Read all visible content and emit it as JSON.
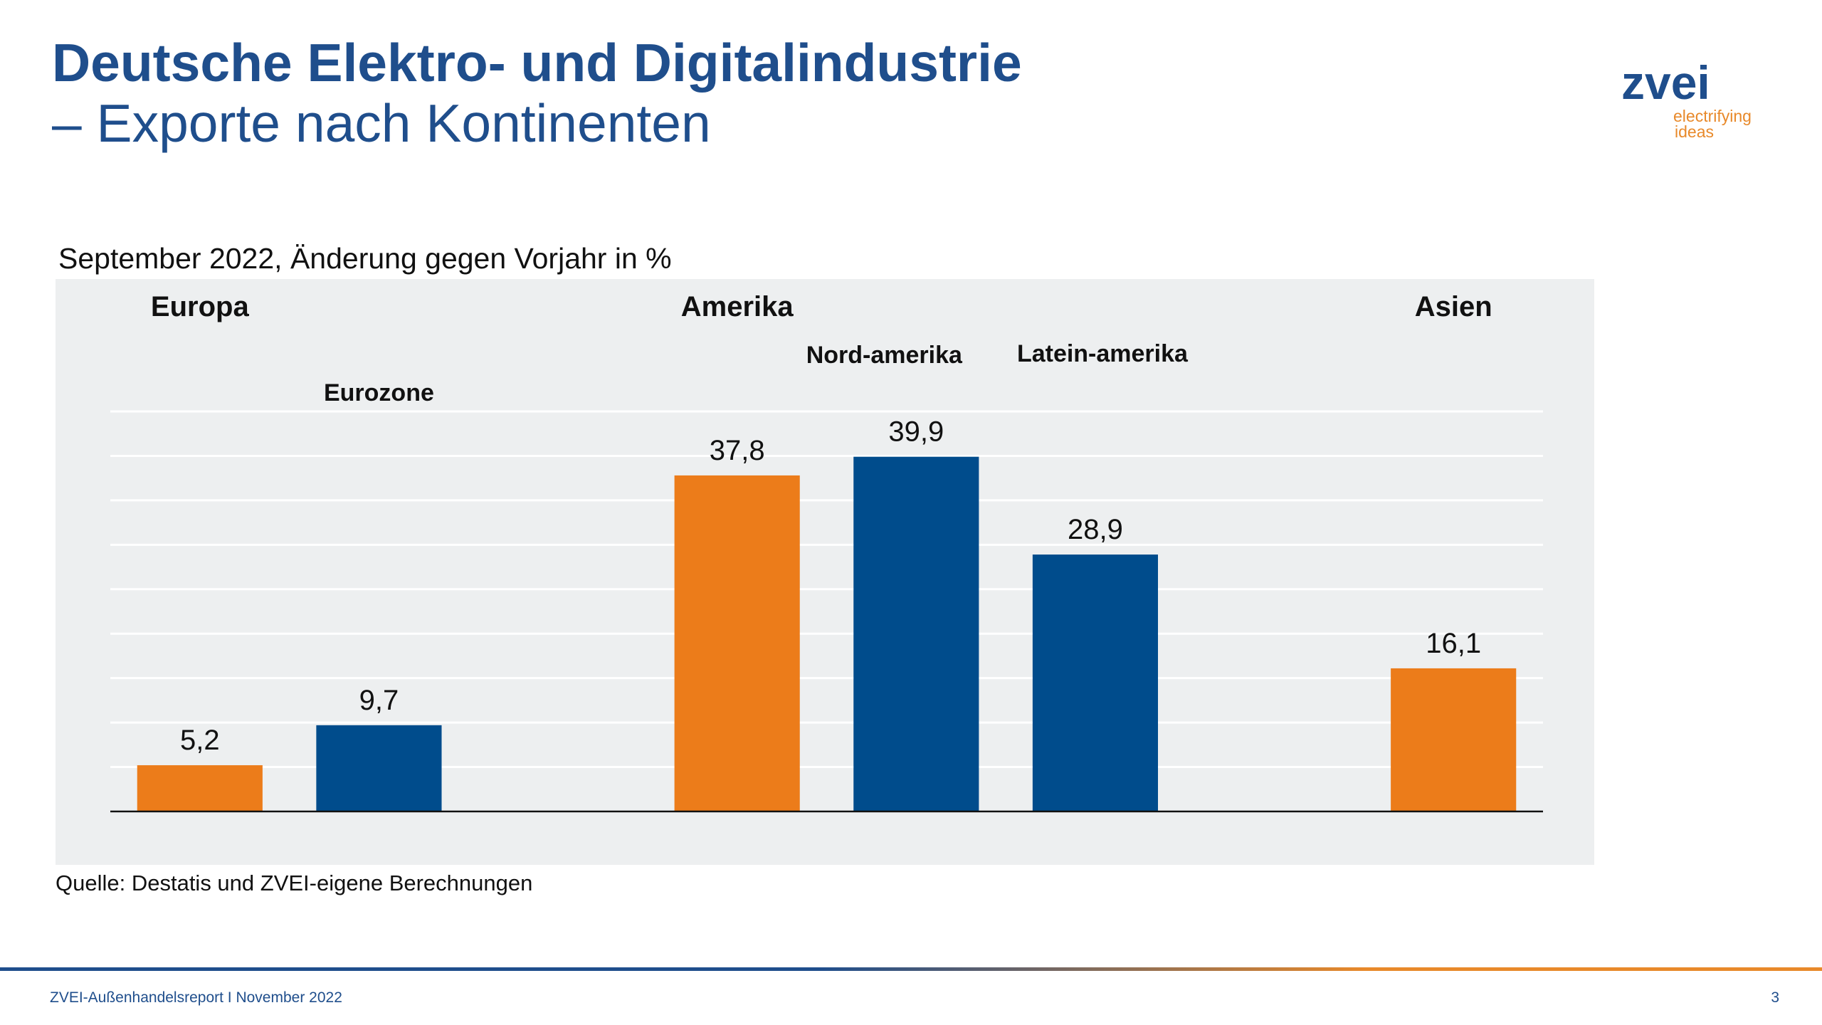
{
  "header": {
    "title": "Deutsche Elektro- und Digitalindustrie",
    "subtitle": "– Exporte nach Kontinenten"
  },
  "logo": {
    "name": "zvei",
    "tagline": [
      "electrifying",
      "ideas"
    ]
  },
  "chart_data": {
    "type": "bar",
    "title": "September 2022, Änderung gegen Vorjahr in %",
    "categories": [
      "Europa",
      "Eurozone",
      null,
      "Amerika",
      "Nord-amerika",
      "Latein-amerika",
      null,
      "Asien"
    ],
    "values": [
      5.2,
      9.7,
      null,
      37.8,
      39.9,
      28.9,
      null,
      16.1
    ],
    "value_labels": [
      "5,2",
      "9,7",
      null,
      "37,8",
      "39,9",
      "28,9",
      null,
      "16,1"
    ],
    "colors": [
      "#ec7c1a",
      "#004c8c",
      null,
      "#ec7c1a",
      "#004c8c",
      "#004c8c",
      null,
      "#ec7c1a"
    ],
    "ylim": [
      0,
      45
    ],
    "yticks": [
      0,
      5,
      10,
      15,
      20,
      25,
      30,
      35,
      40,
      45
    ],
    "grid": true,
    "source": "Quelle: Destatis und ZVEI-eigene Berechnungen"
  },
  "footer": {
    "text": "ZVEI-Außenhandelsreport I November 2022",
    "page": "3"
  }
}
